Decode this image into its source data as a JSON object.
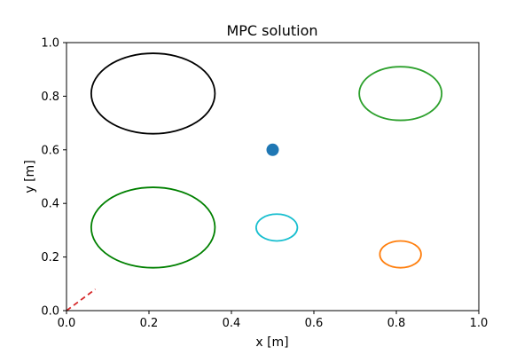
{
  "chart_data": {
    "type": "scatter",
    "title": "MPC solution",
    "xlabel": "x [m]",
    "ylabel": "y [m]",
    "xlim": [
      0.0,
      1.0
    ],
    "ylim": [
      0.0,
      1.0
    ],
    "xticks": [
      "0.0",
      "0.2",
      "0.4",
      "0.6",
      "0.8",
      "1.0"
    ],
    "yticks": [
      "0.0",
      "0.2",
      "0.4",
      "0.6",
      "0.8",
      "1.0"
    ],
    "grid": false,
    "ellipses": [
      {
        "cx": 0.21,
        "cy": 0.81,
        "rx": 0.15,
        "ry": 0.15,
        "color": "#000000"
      },
      {
        "cx": 0.81,
        "cy": 0.81,
        "rx": 0.1,
        "ry": 0.1,
        "color": "#2ca02c"
      },
      {
        "cx": 0.21,
        "cy": 0.31,
        "rx": 0.15,
        "ry": 0.15,
        "color": "#008000"
      },
      {
        "cx": 0.51,
        "cy": 0.31,
        "rx": 0.05,
        "ry": 0.05,
        "color": "#17becf"
      },
      {
        "cx": 0.81,
        "cy": 0.21,
        "rx": 0.05,
        "ry": 0.05,
        "color": "#ff7f0e"
      }
    ],
    "points": [
      {
        "x": 0.5,
        "y": 0.6,
        "color": "#1f77b4"
      }
    ],
    "paths": [
      {
        "x": [
          0.0,
          0.07
        ],
        "y": [
          0.0,
          0.08
        ],
        "color": "#d62728",
        "style": "dashed"
      }
    ]
  }
}
